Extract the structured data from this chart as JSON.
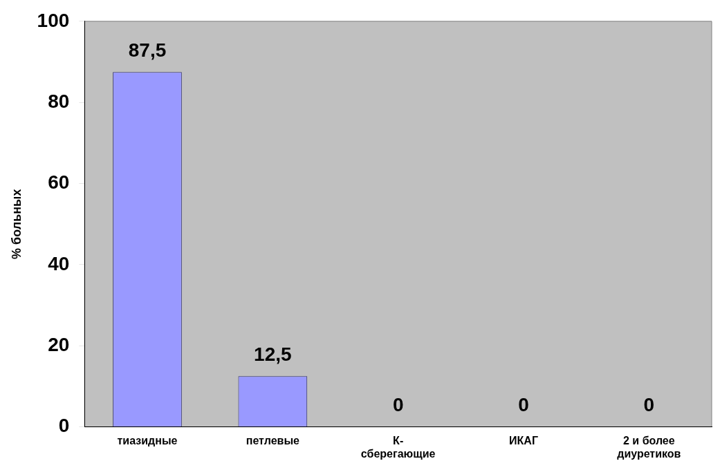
{
  "chart_data": {
    "type": "bar",
    "ylabel": "% больных",
    "categories": [
      "тиазидные",
      "петлевые",
      "К-сберегающие",
      "ИКАГ",
      "2 и более диуретиков"
    ],
    "values": [
      87.5,
      12.5,
      0,
      0,
      0
    ],
    "value_labels": [
      "87,5",
      "12,5",
      "0",
      "0",
      "0"
    ],
    "color": "#9999ff",
    "ylim": [
      0,
      100
    ],
    "yticks": [
      0,
      20,
      40,
      60,
      80,
      100
    ],
    "grid": false,
    "legend": false
  }
}
